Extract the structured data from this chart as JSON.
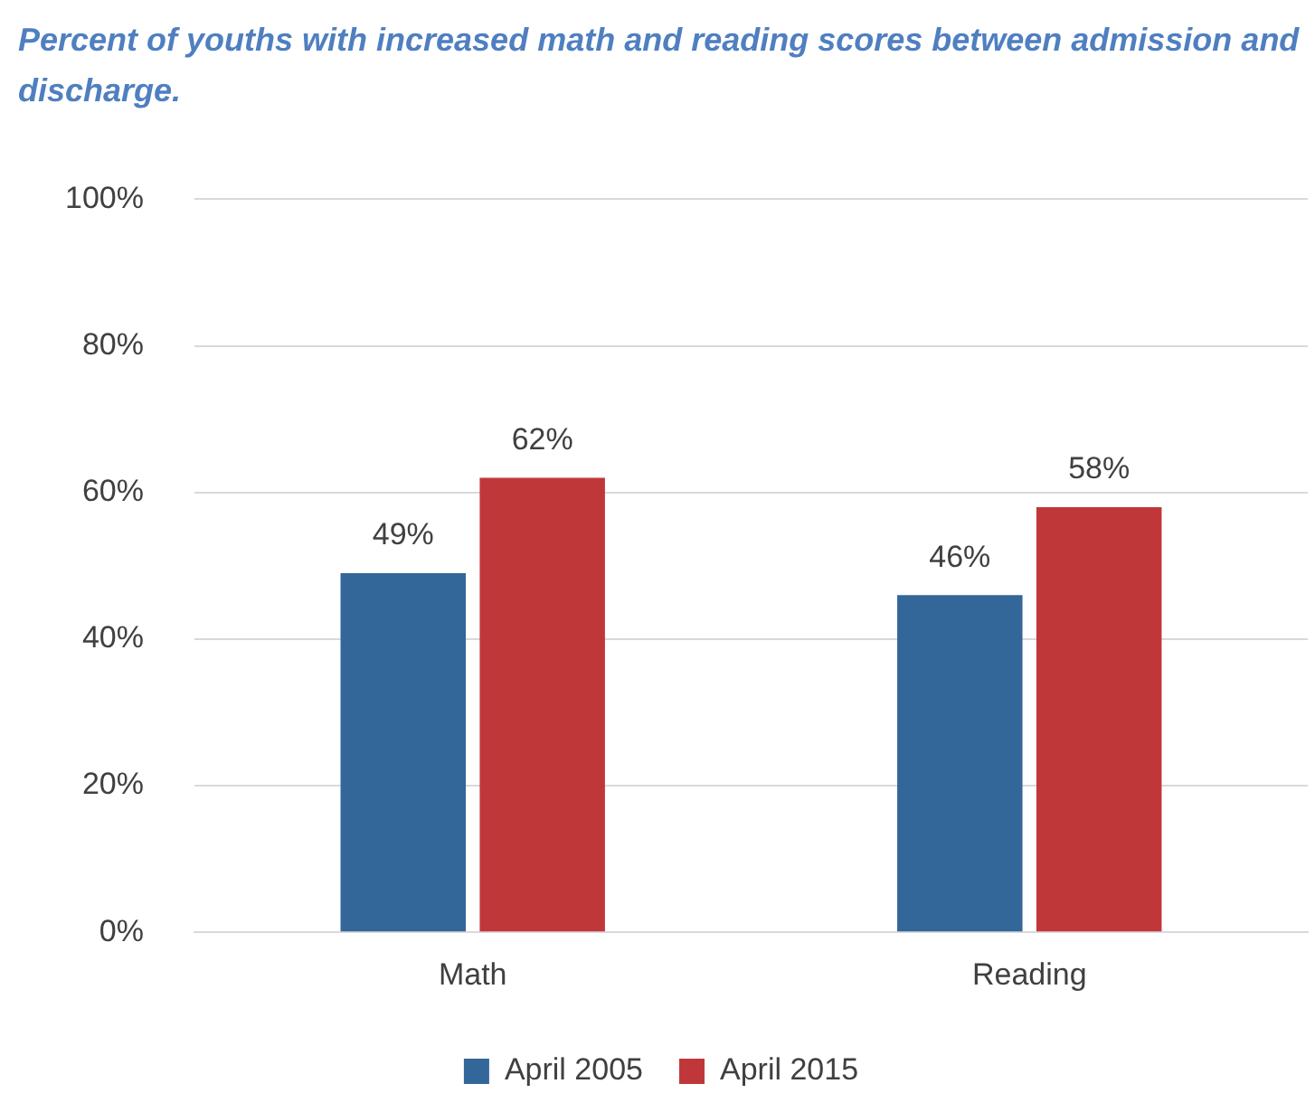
{
  "chart_data": {
    "type": "bar",
    "title": "Percent of youths with increased math and reading scores between admission and discharge.",
    "categories": [
      "Math",
      "Reading"
    ],
    "series": [
      {
        "name": "April 2005",
        "color": "#336699",
        "values": [
          49,
          46
        ],
        "value_labels": [
          "49%",
          "46%"
        ]
      },
      {
        "name": "April 2015",
        "color": "#c0373a",
        "values": [
          62,
          58
        ],
        "value_labels": [
          "62%",
          "58%"
        ]
      }
    ],
    "ylim": [
      0,
      100
    ],
    "yticks": [
      {
        "value": 0,
        "label": "0%"
      },
      {
        "value": 20,
        "label": "20%"
      },
      {
        "value": 40,
        "label": "40%"
      },
      {
        "value": 60,
        "label": "60%"
      },
      {
        "value": 80,
        "label": "80%"
      },
      {
        "value": 100,
        "label": "100%"
      }
    ],
    "grid": "y",
    "legend": "bottom"
  }
}
